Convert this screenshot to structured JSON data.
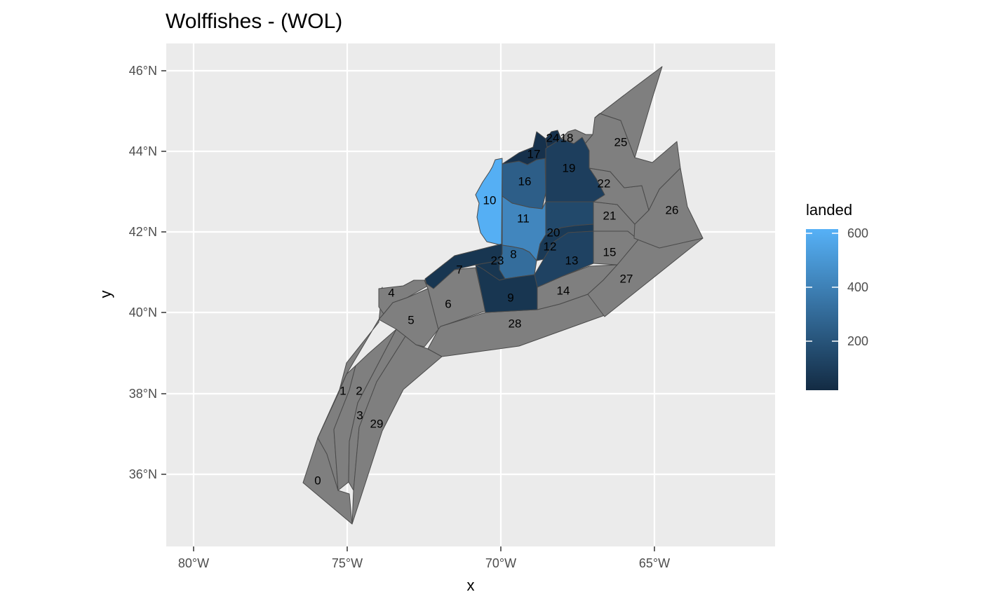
{
  "chart": {
    "title": "Wolffishes - (WOL)",
    "xlabel": "x",
    "ylabel": "y"
  },
  "chart_data": {
    "type": "choropleth",
    "title": "Wolffishes - (WOL)",
    "xlabel": "x",
    "ylabel": "y",
    "x_ticks": [
      "80°W",
      "75°W",
      "70°W",
      "65°W"
    ],
    "y_ticks": [
      "36°N",
      "38°N",
      "40°N",
      "42°N",
      "44°N",
      "46°N"
    ],
    "legend": {
      "title": "landed",
      "ticks": [
        "200",
        "400",
        "600"
      ],
      "low_color": "#132b43",
      "high_color": "#56b1f7",
      "na_color": "#7f7f7f"
    },
    "areas": [
      {
        "id": "0",
        "landed": null
      },
      {
        "id": "1",
        "landed": null
      },
      {
        "id": "2",
        "landed": null
      },
      {
        "id": "3",
        "landed": null
      },
      {
        "id": "4",
        "landed": null
      },
      {
        "id": "5",
        "landed": null
      },
      {
        "id": "6",
        "landed": null
      },
      {
        "id": "7",
        "landed": 60
      },
      {
        "id": "8",
        "landed": 320
      },
      {
        "id": "9",
        "landed": 60
      },
      {
        "id": "10",
        "landed": 630
      },
      {
        "id": "11",
        "landed": 440
      },
      {
        "id": "12",
        "landed": 80
      },
      {
        "id": "13",
        "landed": 120
      },
      {
        "id": "14",
        "landed": null
      },
      {
        "id": "15",
        "landed": null
      },
      {
        "id": "16",
        "landed": 250
      },
      {
        "id": "17",
        "landed": 40
      },
      {
        "id": "18",
        "landed": null
      },
      {
        "id": "19",
        "landed": 100
      },
      {
        "id": "20",
        "landed": 150
      },
      {
        "id": "21",
        "landed": null
      },
      {
        "id": "22",
        "landed": null
      },
      {
        "id": "23",
        "landed": 60
      },
      {
        "id": "24",
        "landed": 40
      },
      {
        "id": "25",
        "landed": null
      },
      {
        "id": "26",
        "landed": null
      },
      {
        "id": "27",
        "landed": null
      },
      {
        "id": "28",
        "landed": null
      },
      {
        "id": "29",
        "landed": null
      }
    ]
  }
}
